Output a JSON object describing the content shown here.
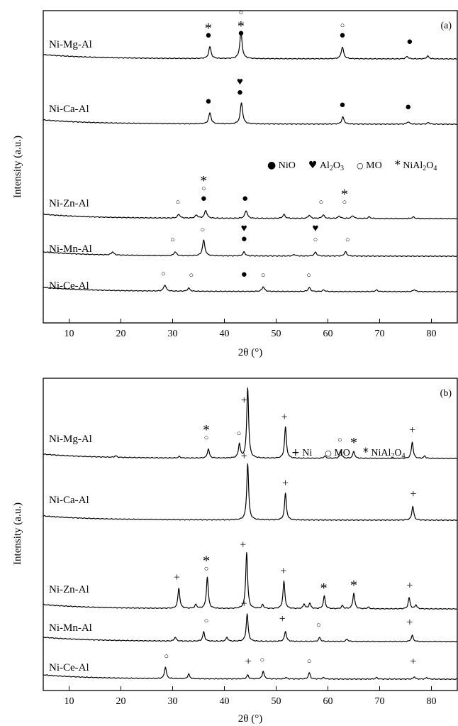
{
  "colors": {
    "line": "#000000",
    "background": "#ffffff"
  },
  "marker_glyphs": {
    "NiO": "●",
    "Al2O3": "♥",
    "MO": "○",
    "NiAl2O4": "*",
    "Ni": "+"
  },
  "chart_data": [
    {
      "type": "line",
      "panel_label": "(a)",
      "xlabel": "2θ (°)",
      "ylabel": "Intensity (a.u.)",
      "xlim": [
        5,
        85
      ],
      "xticks": [
        10,
        20,
        30,
        40,
        50,
        60,
        70,
        80
      ],
      "legend": {
        "position": "right",
        "items": [
          {
            "marker": "NiO",
            "text_parts": [
              "NiO"
            ]
          },
          {
            "marker": "Al2O3",
            "text_parts": [
              "Al",
              "2",
              "O",
              "3"
            ]
          },
          {
            "marker": "MO",
            "text_parts": [
              "MO"
            ]
          },
          {
            "marker": "NiAl2O4",
            "text_parts": [
              "NiAl",
              "2",
              "O",
              "4"
            ]
          }
        ]
      },
      "series": [
        {
          "name": "Ni-Mg-Al",
          "peaks": [
            [
              37.2,
              1.5
            ],
            [
              43.2,
              3.3
            ],
            [
              62.8,
              1.5
            ],
            [
              75.3,
              0.3
            ],
            [
              79.3,
              0.35
            ]
          ],
          "markers": [
            {
              "x": 36.9,
              "stack": [
                "NiAl2O4",
                "NiO"
              ]
            },
            {
              "x": 43.2,
              "stack": [
                "MO",
                "NiAl2O4",
                "NiO"
              ]
            },
            {
              "x": 62.8,
              "stack": [
                "MO",
                "NiO"
              ]
            },
            {
              "x": 75.8,
              "stack": [
                "NiO"
              ]
            }
          ]
        },
        {
          "name": "Ni-Ca-Al",
          "peaks": [
            [
              37.2,
              1.4
            ],
            [
              43.3,
              2.7
            ],
            [
              62.9,
              0.9
            ],
            [
              75.5,
              0.3
            ],
            [
              79.4,
              0.2
            ]
          ],
          "markers": [
            {
              "x": 36.9,
              "stack": [
                "NiO"
              ]
            },
            {
              "x": 43.0,
              "stack": [
                "Al2O3",
                "NiO"
              ]
            },
            {
              "x": 62.8,
              "stack": [
                "NiO"
              ]
            },
            {
              "x": 75.5,
              "stack": [
                "NiO"
              ]
            }
          ]
        },
        {
          "name": "Ni-Zn-Al",
          "peaks": [
            [
              31.2,
              0.5
            ],
            [
              34.6,
              0.4
            ],
            [
              36.4,
              1.0
            ],
            [
              44.2,
              1.0
            ],
            [
              51.5,
              0.5
            ],
            [
              56.4,
              0.4
            ],
            [
              59.1,
              0.45
            ],
            [
              62.2,
              0.3
            ],
            [
              64.8,
              0.35
            ],
            [
              68.0,
              0.2
            ],
            [
              76.5,
              0.2
            ]
          ],
          "markers": [
            {
              "x": 31.0,
              "stack": [
                "MO"
              ]
            },
            {
              "x": 36.0,
              "stack": [
                "NiAl2O4",
                "MO",
                "NiO"
              ]
            },
            {
              "x": 44.0,
              "stack": [
                "NiO"
              ]
            },
            {
              "x": 58.7,
              "stack": [
                "MO"
              ]
            },
            {
              "x": 63.2,
              "stack": [
                "NiAl2O4",
                "MO"
              ]
            }
          ]
        },
        {
          "name": "Ni-Mn-Al",
          "peaks": [
            [
              18.4,
              0.4
            ],
            [
              30.5,
              0.5
            ],
            [
              36.0,
              2.0
            ],
            [
              43.8,
              0.5
            ],
            [
              53.5,
              0.2
            ],
            [
              57.6,
              0.5
            ],
            [
              63.4,
              0.55
            ]
          ],
          "markers": [
            {
              "x": 30.0,
              "stack": [
                "MO"
              ]
            },
            {
              "x": 35.8,
              "stack": [
                "MO"
              ]
            },
            {
              "x": 43.8,
              "stack": [
                "Al2O3",
                "NiO"
              ]
            },
            {
              "x": 57.6,
              "stack": [
                "Al2O3",
                "MO"
              ]
            },
            {
              "x": 63.8,
              "stack": [
                "MO"
              ]
            }
          ]
        },
        {
          "name": "Ni-Ce-Al",
          "peaks": [
            [
              28.5,
              0.8
            ],
            [
              33.1,
              0.4
            ],
            [
              47.5,
              0.6
            ],
            [
              56.4,
              0.5
            ],
            [
              59.2,
              0.2
            ],
            [
              69.4,
              0.2
            ],
            [
              76.7,
              0.25
            ]
          ],
          "markers": [
            {
              "x": 28.2,
              "stack": [
                "MO"
              ]
            },
            {
              "x": 33.6,
              "stack": [
                "MO"
              ]
            },
            {
              "x": 43.8,
              "stack": [
                "NiO"
              ]
            },
            {
              "x": 47.5,
              "stack": [
                "MO"
              ]
            },
            {
              "x": 56.3,
              "stack": [
                "MO"
              ]
            }
          ]
        }
      ]
    },
    {
      "type": "line",
      "panel_label": "(b)",
      "xlabel": "2θ (°)",
      "ylabel": "Intensity (a.u.)",
      "xlim": [
        5,
        85
      ],
      "xticks": [
        10,
        20,
        30,
        40,
        50,
        60,
        70,
        80
      ],
      "legend": {
        "position": "right",
        "items": [
          {
            "marker": "Ni",
            "text_parts": [
              "Ni"
            ]
          },
          {
            "marker": "MO",
            "text_parts": [
              "MO"
            ]
          },
          {
            "marker": "NiAl2O4",
            "text_parts": [
              "NiAl",
              "2",
              "O",
              "4"
            ]
          }
        ]
      },
      "series": [
        {
          "name": "Ni-Mg-Al",
          "peaks": [
            [
              19.0,
              0.2
            ],
            [
              31.3,
              0.2
            ],
            [
              36.9,
              1.2
            ],
            [
              42.9,
              1.8
            ],
            [
              44.5,
              9.0
            ],
            [
              51.8,
              4.0
            ],
            [
              59.4,
              0.3
            ],
            [
              62.5,
              0.9
            ],
            [
              65.0,
              0.9
            ],
            [
              76.3,
              2.1
            ],
            [
              78.7,
              0.3
            ]
          ],
          "markers": [
            {
              "x": 36.5,
              "stack": [
                "NiAl2O4",
                "MO"
              ]
            },
            {
              "x": 42.8,
              "stack": [
                "MO"
              ]
            },
            {
              "x": 43.8,
              "stack": [
                "Ni"
              ]
            },
            {
              "x": 51.6,
              "stack": [
                "Ni"
              ]
            },
            {
              "x": 62.3,
              "stack": [
                "MO"
              ]
            },
            {
              "x": 65.0,
              "stack": [
                "NiAl2O4"
              ]
            },
            {
              "x": 76.3,
              "stack": [
                "Ni"
              ]
            }
          ]
        },
        {
          "name": "Ni-Ca-Al",
          "peaks": [
            [
              44.5,
              7.2
            ],
            [
              51.8,
              3.4
            ],
            [
              76.4,
              1.8
            ]
          ],
          "markers": [
            {
              "x": 43.8,
              "stack": [
                "Ni"
              ]
            },
            {
              "x": 51.8,
              "stack": [
                "Ni"
              ]
            },
            {
              "x": 76.5,
              "stack": [
                "Ni"
              ]
            }
          ]
        },
        {
          "name": "Ni-Zn-Al",
          "peaks": [
            [
              31.2,
              2.6
            ],
            [
              34.5,
              0.5
            ],
            [
              36.7,
              4.0
            ],
            [
              44.3,
              7.2
            ],
            [
              47.4,
              0.5
            ],
            [
              51.5,
              3.5
            ],
            [
              55.4,
              0.6
            ],
            [
              56.5,
              0.7
            ],
            [
              59.3,
              1.6
            ],
            [
              62.8,
              0.4
            ],
            [
              65.0,
              2.0
            ],
            [
              67.8,
              0.2
            ],
            [
              75.7,
              1.4
            ],
            [
              77.0,
              0.5
            ]
          ],
          "markers": [
            {
              "x": 30.8,
              "stack": [
                "Ni"
              ]
            },
            {
              "x": 36.5,
              "stack": [
                "NiAl2O4",
                "MO"
              ]
            },
            {
              "x": 43.6,
              "stack": [
                "Ni"
              ]
            },
            {
              "x": 51.4,
              "stack": [
                "Ni"
              ]
            },
            {
              "x": 59.2,
              "stack": [
                "NiAl2O4"
              ]
            },
            {
              "x": 65.0,
              "stack": [
                "NiAl2O4"
              ]
            },
            {
              "x": 75.8,
              "stack": [
                "Ni"
              ]
            }
          ]
        },
        {
          "name": "Ni-Mn-Al",
          "peaks": [
            [
              30.5,
              0.5
            ],
            [
              36.0,
              1.2
            ],
            [
              40.5,
              0.5
            ],
            [
              44.4,
              3.5
            ],
            [
              51.8,
              1.3
            ],
            [
              58.4,
              0.5
            ],
            [
              63.7,
              0.3
            ],
            [
              76.3,
              0.8
            ]
          ],
          "markers": [
            {
              "x": 36.5,
              "stack": [
                "MO"
              ]
            },
            {
              "x": 43.8,
              "stack": [
                "Ni"
              ]
            },
            {
              "x": 51.2,
              "stack": [
                "Ni"
              ]
            },
            {
              "x": 58.2,
              "stack": [
                "MO"
              ]
            },
            {
              "x": 75.8,
              "stack": [
                "Ni"
              ]
            }
          ]
        },
        {
          "name": "Ni-Ce-Al",
          "peaks": [
            [
              28.6,
              1.5
            ],
            [
              33.1,
              0.6
            ],
            [
              44.5,
              0.5
            ],
            [
              47.5,
              1.0
            ],
            [
              51.9,
              0.2
            ],
            [
              56.4,
              0.8
            ],
            [
              59.2,
              0.2
            ],
            [
              69.4,
              0.2
            ],
            [
              76.7,
              0.3
            ],
            [
              79.1,
              0.2
            ]
          ],
          "markers": [
            {
              "x": 28.8,
              "stack": [
                "MO"
              ]
            },
            {
              "x": 44.6,
              "stack": [
                "Ni"
              ]
            },
            {
              "x": 47.3,
              "stack": [
                "MO"
              ]
            },
            {
              "x": 56.4,
              "stack": [
                "MO"
              ]
            },
            {
              "x": 76.5,
              "stack": [
                "Ni"
              ]
            }
          ]
        }
      ]
    }
  ]
}
